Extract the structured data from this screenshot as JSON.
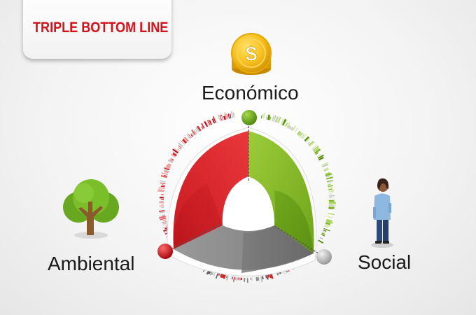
{
  "title": "TRIPLE BOTTOM LINE",
  "pillars": [
    {
      "id": "economico",
      "label": "Económico",
      "icon": "dollar-coin-icon",
      "color": "#7ab51d"
    },
    {
      "id": "ambiental",
      "label": "Ambiental",
      "icon": "tree-icon",
      "color": "#d81e25"
    },
    {
      "id": "social",
      "label": "Social",
      "icon": "person-icon",
      "color": "#8c8c8c"
    }
  ],
  "icons": {
    "coin_symbol": "$"
  },
  "colors": {
    "title": "#d4121a",
    "green": "#7ab51d",
    "red": "#d81e25",
    "gray": "#8c8c8c"
  }
}
